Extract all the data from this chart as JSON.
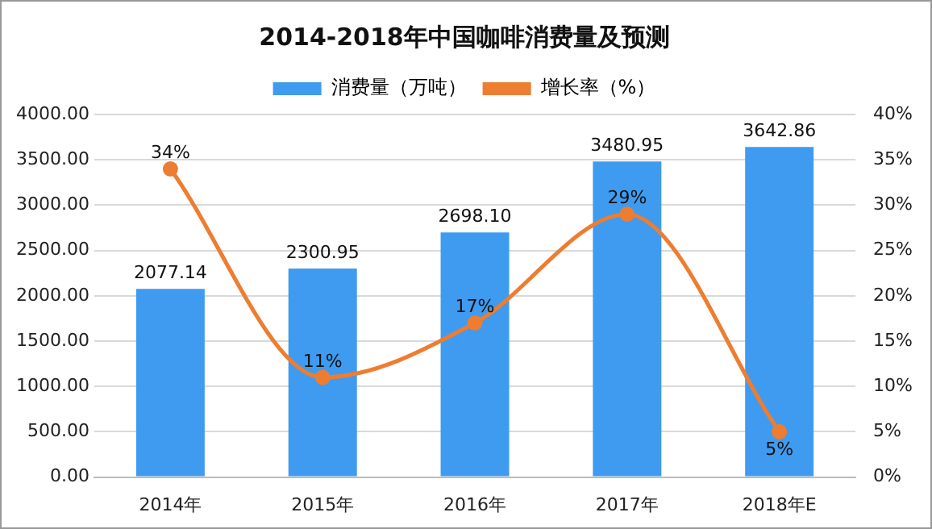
{
  "chart_data": {
    "type": "bar",
    "title": "2014-2018年中国咖啡消费量及预测",
    "categories": [
      "2014年",
      "2015年",
      "2016年",
      "2017年",
      "2018年E"
    ],
    "series": [
      {
        "name": "消费量（万吨）",
        "color": "#3e9bf0",
        "values": [
          2077.14,
          2300.95,
          2698.1,
          3480.95,
          3642.86
        ],
        "value_labels": [
          "2077.14",
          "2300.95",
          "2698.10",
          "3480.95",
          "3642.86"
        ]
      },
      {
        "name": "增长率（%）",
        "type": "line",
        "axis": "y2",
        "color": "#ed7d31",
        "marker": "circle",
        "values": [
          34,
          11,
          17,
          29,
          5
        ],
        "value_labels": [
          "34%",
          "11%",
          "17%",
          "29%",
          "5%"
        ]
      }
    ],
    "ylim": [
      0,
      4000
    ],
    "yticks": [
      {
        "value": 0,
        "label": "0.00"
      },
      {
        "value": 500,
        "label": "500.00"
      },
      {
        "value": 1000,
        "label": "1000.00"
      },
      {
        "value": 1500,
        "label": "1500.00"
      },
      {
        "value": 2000,
        "label": "2000.00"
      },
      {
        "value": 2500,
        "label": "2500.00"
      },
      {
        "value": 3000,
        "label": "3000.00"
      },
      {
        "value": 3500,
        "label": "3500.00"
      },
      {
        "value": 4000,
        "label": "4000.00"
      }
    ],
    "y2lim": [
      0,
      40
    ],
    "y2ticks": [
      {
        "value": 0,
        "label": "0%"
      },
      {
        "value": 5,
        "label": "5%"
      },
      {
        "value": 10,
        "label": "10%"
      },
      {
        "value": 15,
        "label": "15%"
      },
      {
        "value": 20,
        "label": "20%"
      },
      {
        "value": 25,
        "label": "25%"
      },
      {
        "value": 30,
        "label": "30%"
      },
      {
        "value": 35,
        "label": "35%"
      },
      {
        "value": 40,
        "label": "40%"
      }
    ],
    "grid": "y",
    "legend": "top"
  }
}
